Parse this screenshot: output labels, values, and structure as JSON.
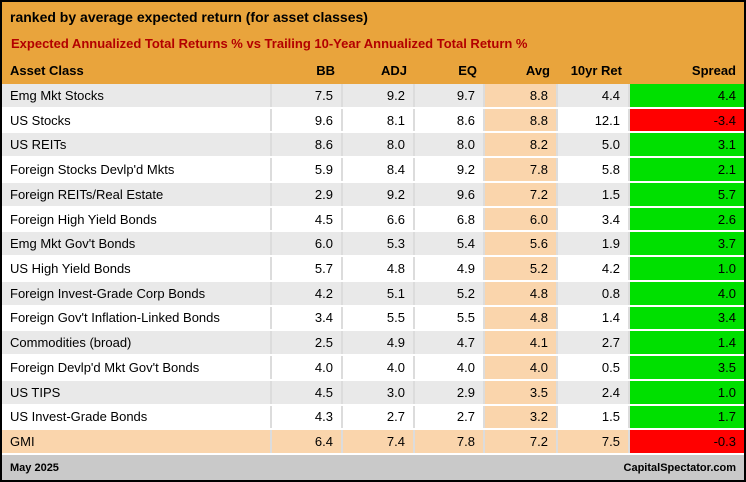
{
  "header": {
    "title": "ranked by average expected return (for asset classes)",
    "subtitle": "Expected Annualized Total Returns % vs Trailing 10-Year Annualized Total Return %"
  },
  "columns": {
    "asset": "Asset Class",
    "bb": "BB",
    "adj": "ADJ",
    "eq": "EQ",
    "avg": "Avg",
    "tenyr": "10yr Ret",
    "spread": "Spread"
  },
  "rows": [
    {
      "name": "Emg Mkt Stocks",
      "bb": "7.5",
      "adj": "9.2",
      "eq": "9.7",
      "avg": "8.8",
      "tenyr": "4.4",
      "spread": "4.4"
    },
    {
      "name": "US Stocks",
      "bb": "9.6",
      "adj": "8.1",
      "eq": "8.6",
      "avg": "8.8",
      "tenyr": "12.1",
      "spread": "-3.4"
    },
    {
      "name": "US REITs",
      "bb": "8.6",
      "adj": "8.0",
      "eq": "8.0",
      "avg": "8.2",
      "tenyr": "5.0",
      "spread": "3.1"
    },
    {
      "name": "Foreign Stocks Devlp'd Mkts",
      "bb": "5.9",
      "adj": "8.4",
      "eq": "9.2",
      "avg": "7.8",
      "tenyr": "5.8",
      "spread": "2.1"
    },
    {
      "name": "Foreign REITs/Real Estate",
      "bb": "2.9",
      "adj": "9.2",
      "eq": "9.6",
      "avg": "7.2",
      "tenyr": "1.5",
      "spread": "5.7"
    },
    {
      "name": "Foreign High Yield Bonds",
      "bb": "4.5",
      "adj": "6.6",
      "eq": "6.8",
      "avg": "6.0",
      "tenyr": "3.4",
      "spread": "2.6"
    },
    {
      "name": "Emg Mkt Gov't Bonds",
      "bb": "6.0",
      "adj": "5.3",
      "eq": "5.4",
      "avg": "5.6",
      "tenyr": "1.9",
      "spread": "3.7"
    },
    {
      "name": "US High Yield Bonds",
      "bb": "5.7",
      "adj": "4.8",
      "eq": "4.9",
      "avg": "5.2",
      "tenyr": "4.2",
      "spread": "1.0"
    },
    {
      "name": "Foreign Invest-Grade Corp Bonds",
      "bb": "4.2",
      "adj": "5.1",
      "eq": "5.2",
      "avg": "4.8",
      "tenyr": "0.8",
      "spread": "4.0"
    },
    {
      "name": "Foreign Gov't Inflation-Linked Bonds",
      "bb": "3.4",
      "adj": "5.5",
      "eq": "5.5",
      "avg": "4.8",
      "tenyr": "1.4",
      "spread": "3.4"
    },
    {
      "name": "Commodities (broad)",
      "bb": "2.5",
      "adj": "4.9",
      "eq": "4.7",
      "avg": "4.1",
      "tenyr": "2.7",
      "spread": "1.4"
    },
    {
      "name": "Foreign Devlp'd Mkt Gov't Bonds",
      "bb": "4.0",
      "adj": "4.0",
      "eq": "4.0",
      "avg": "4.0",
      "tenyr": "0.5",
      "spread": "3.5"
    },
    {
      "name": "US TIPS",
      "bb": "4.5",
      "adj": "3.0",
      "eq": "2.9",
      "avg": "3.5",
      "tenyr": "2.4",
      "spread": "1.0"
    },
    {
      "name": "US Invest-Grade Bonds",
      "bb": "4.3",
      "adj": "2.7",
      "eq": "2.7",
      "avg": "3.2",
      "tenyr": "1.5",
      "spread": "1.7"
    },
    {
      "name": "GMI",
      "bb": "6.4",
      "adj": "7.4",
      "eq": "7.8",
      "avg": "7.2",
      "tenyr": "7.5",
      "spread": "-0.3"
    }
  ],
  "footer": {
    "date": "May 2025",
    "site": "CapitalSpectator.com"
  },
  "colors": {
    "header_bg": "#E9A43C",
    "subtitle_text": "#B30000",
    "avg_column_bg": "#FAD5AC",
    "gmi_row_bg": "#FAD5AC",
    "row_alt_bg": "#E9E9E9",
    "spread_positive": "#00E000",
    "spread_negative": "#FF0000",
    "footer_bg": "#C9C9C9"
  },
  "chart_data": {
    "type": "table",
    "title": "ranked by average expected return (for asset classes)",
    "subtitle": "Expected Annualized Total Returns % vs Trailing 10-Year Annualized Total Return %",
    "columns": [
      "Asset Class",
      "BB",
      "ADJ",
      "EQ",
      "Avg",
      "10yr Ret",
      "Spread"
    ],
    "rows": [
      [
        "Emg Mkt Stocks",
        7.5,
        9.2,
        9.7,
        8.8,
        4.4,
        4.4
      ],
      [
        "US Stocks",
        9.6,
        8.1,
        8.6,
        8.8,
        12.1,
        -3.4
      ],
      [
        "US REITs",
        8.6,
        8.0,
        8.0,
        8.2,
        5.0,
        3.1
      ],
      [
        "Foreign Stocks Devlp'd Mkts",
        5.9,
        8.4,
        9.2,
        7.8,
        5.8,
        2.1
      ],
      [
        "Foreign REITs/Real Estate",
        2.9,
        9.2,
        9.6,
        7.2,
        1.5,
        5.7
      ],
      [
        "Foreign High Yield Bonds",
        4.5,
        6.6,
        6.8,
        6.0,
        3.4,
        2.6
      ],
      [
        "Emg Mkt Gov't Bonds",
        6.0,
        5.3,
        5.4,
        5.6,
        1.9,
        3.7
      ],
      [
        "US High Yield Bonds",
        5.7,
        4.8,
        4.9,
        5.2,
        4.2,
        1.0
      ],
      [
        "Foreign Invest-Grade Corp Bonds",
        4.2,
        5.1,
        5.2,
        4.8,
        0.8,
        4.0
      ],
      [
        "Foreign Gov't Inflation-Linked Bonds",
        3.4,
        5.5,
        5.5,
        4.8,
        1.4,
        3.4
      ],
      [
        "Commodities (broad)",
        2.5,
        4.9,
        4.7,
        4.1,
        2.7,
        1.4
      ],
      [
        "Foreign Devlp'd Mkt Gov't Bonds",
        4.0,
        4.0,
        4.0,
        4.0,
        0.5,
        3.5
      ],
      [
        "US TIPS",
        4.5,
        3.0,
        2.9,
        3.5,
        2.4,
        1.0
      ],
      [
        "US Invest-Grade Bonds",
        4.3,
        2.7,
        2.7,
        3.2,
        1.5,
        1.7
      ],
      [
        "GMI",
        6.4,
        7.4,
        7.8,
        7.2,
        7.5,
        -0.3
      ]
    ],
    "notes": "Spread cells highlighted green when positive, red when negative; Avg column highlighted peach; GMI summary row highlighted peach"
  }
}
